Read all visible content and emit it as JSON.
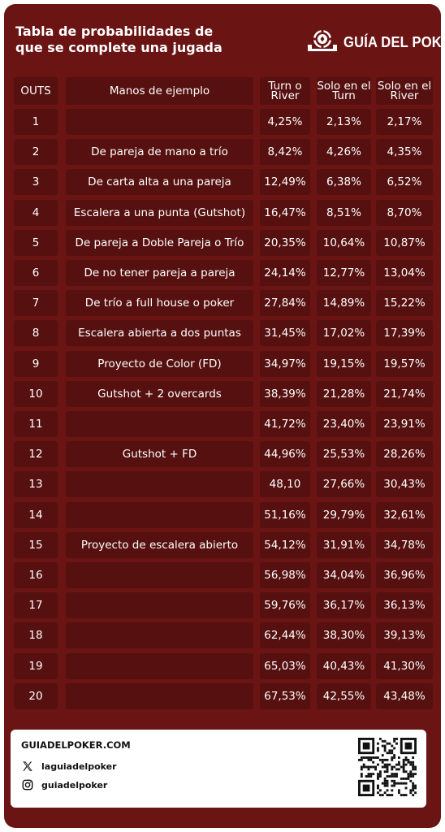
{
  "header": {
    "title_line1": "Tabla de probabilidades de",
    "title_line2": "que se complete una jugada",
    "logo_text": "GUÍA DEL POKER"
  },
  "table": {
    "columns": [
      "OUTS",
      "Manos de ejemplo",
      "Turn o River",
      "Solo en el Turn",
      "Solo en el River"
    ],
    "rows": [
      {
        "outs": "1",
        "hand": "",
        "turn_or_river": "4,25%",
        "turn": "2,13%",
        "river": "2,17%"
      },
      {
        "outs": "2",
        "hand": "De pareja de mano a trío",
        "turn_or_river": "8,42%",
        "turn": "4,26%",
        "river": "4,35%"
      },
      {
        "outs": "3",
        "hand": "De carta alta a una pareja",
        "turn_or_river": "12,49%",
        "turn": "6,38%",
        "river": "6,52%"
      },
      {
        "outs": "4",
        "hand": "Escalera a una punta (Gutshot)",
        "turn_or_river": "16,47%",
        "turn": "8,51%",
        "river": "8,70%"
      },
      {
        "outs": "5",
        "hand": "De pareja a Doble Pareja o Trío",
        "turn_or_river": "20,35%",
        "turn": "10,64%",
        "river": "10,87%"
      },
      {
        "outs": "6",
        "hand": "De no tener pareja a pareja",
        "turn_or_river": "24,14%",
        "turn": "12,77%",
        "river": "13,04%"
      },
      {
        "outs": "7",
        "hand": "De trío a full house o poker",
        "turn_or_river": "27,84%",
        "turn": "14,89%",
        "river": "15,22%"
      },
      {
        "outs": "8",
        "hand": "Escalera abierta a dos puntas",
        "turn_or_river": "31,45%",
        "turn": "17,02%",
        "river": "17,39%"
      },
      {
        "outs": "9",
        "hand": "Proyecto de Color (FD)",
        "turn_or_river": "34,97%",
        "turn": "19,15%",
        "river": "19,57%"
      },
      {
        "outs": "10",
        "hand": "Gutshot + 2 overcards",
        "turn_or_river": "38,39%",
        "turn": "21,28%",
        "river": "21,74%"
      },
      {
        "outs": "11",
        "hand": "",
        "turn_or_river": "41,72%",
        "turn": "23,40%",
        "river": "23,91%"
      },
      {
        "outs": "12",
        "hand": "Gutshot + FD",
        "turn_or_river": "44,96%",
        "turn": "25,53%",
        "river": "28,26%"
      },
      {
        "outs": "13",
        "hand": "",
        "turn_or_river": "48,10",
        "turn": "27,66%",
        "river": "30,43%"
      },
      {
        "outs": "14",
        "hand": "",
        "turn_or_river": "51,16%",
        "turn": "29,79%",
        "river": "32,61%"
      },
      {
        "outs": "15",
        "hand": "Proyecto de escalera abierto",
        "turn_or_river": "54,12%",
        "turn": "31,91%",
        "river": "34,78%"
      },
      {
        "outs": "16",
        "hand": "",
        "turn_or_river": "56,98%",
        "turn": "34,04%",
        "river": "36,96%"
      },
      {
        "outs": "17",
        "hand": "",
        "turn_or_river": "59,76%",
        "turn": "36,17%",
        "river": "36,13%"
      },
      {
        "outs": "18",
        "hand": "",
        "turn_or_river": "62,44%",
        "turn": "38,30%",
        "river": "39,13%"
      },
      {
        "outs": "19",
        "hand": "",
        "turn_or_river": "65,03%",
        "turn": "40,43%",
        "river": "41,30%"
      },
      {
        "outs": "20",
        "hand": "",
        "turn_or_river": "67,53%",
        "turn": "42,55%",
        "river": "43,48%"
      }
    ]
  },
  "footer": {
    "site": "GUIADELPOKER.COM",
    "x_handle": "laguiadelpoker",
    "instagram_handle": "guiadelpoker",
    "x_icon": "x-logo-icon",
    "instagram_icon": "instagram-icon",
    "qr_icon": "qr-code"
  },
  "colors": {
    "background": "#6b1414",
    "cell": "#561010",
    "text": "#ffffff"
  }
}
